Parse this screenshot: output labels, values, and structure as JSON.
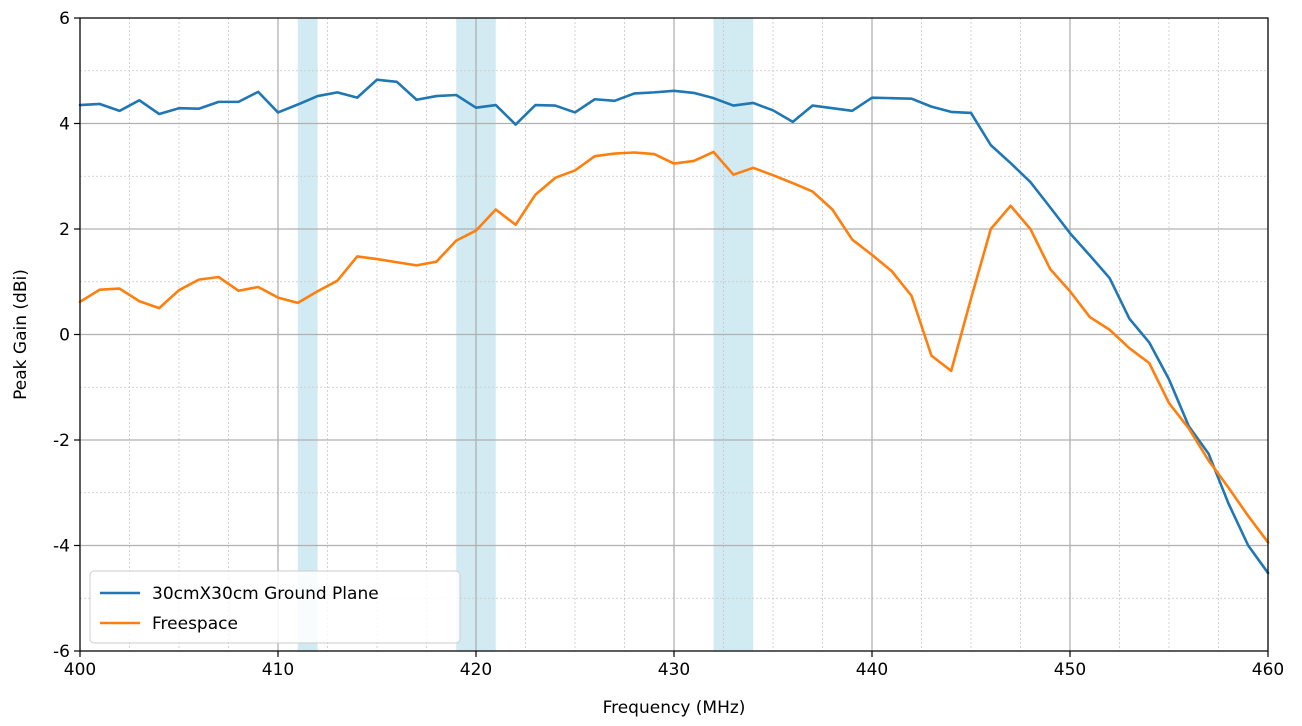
{
  "chart_data": {
    "type": "line",
    "title": "",
    "xlabel": "Frequency (MHz)",
    "ylabel": "Peak Gain (dBi)",
    "xlim": [
      400,
      460
    ],
    "ylim": [
      -6,
      6
    ],
    "x_ticks": [
      400,
      410,
      420,
      430,
      440,
      450,
      460
    ],
    "y_ticks": [
      -6,
      -4,
      -2,
      0,
      2,
      4,
      6
    ],
    "y_tick_labels": [
      "-6",
      "-4",
      "-2",
      "0",
      "2",
      "4",
      "6"
    ],
    "x_minor_step": 2.5,
    "y_minor_step": 1,
    "grid": true,
    "legend_position": "lower-left",
    "shaded_bands": [
      {
        "x0": 411,
        "x1": 412,
        "color": "#add8e6"
      },
      {
        "x0": 419,
        "x1": 421,
        "color": "#add8e6"
      },
      {
        "x0": 432,
        "x1": 434,
        "color": "#add8e6"
      }
    ],
    "x": [
      400,
      401,
      402,
      403,
      404,
      405,
      406,
      407,
      408,
      409,
      410,
      411,
      412,
      413,
      414,
      415,
      416,
      417,
      418,
      419,
      420,
      421,
      422,
      423,
      424,
      425,
      426,
      427,
      428,
      429,
      430,
      431,
      432,
      433,
      434,
      435,
      436,
      437,
      438,
      439,
      440,
      441,
      442,
      443,
      444,
      445,
      446,
      447,
      448,
      449,
      450,
      451,
      452,
      453,
      454,
      455,
      456,
      457,
      458,
      459,
      460
    ],
    "series": [
      {
        "name": "30cmX30cm Ground Plane",
        "color": "#1f77b4",
        "values": [
          4.35,
          4.37,
          4.24,
          4.44,
          4.18,
          4.29,
          4.28,
          4.41,
          4.41,
          4.6,
          4.21,
          4.36,
          4.52,
          4.59,
          4.49,
          4.83,
          4.79,
          4.45,
          4.52,
          4.54,
          4.3,
          4.35,
          3.98,
          4.35,
          4.34,
          4.21,
          4.46,
          4.43,
          4.57,
          4.59,
          4.62,
          4.58,
          4.48,
          4.34,
          4.39,
          4.25,
          4.03,
          4.34,
          4.29,
          4.24,
          4.49,
          4.48,
          4.47,
          4.32,
          4.22,
          4.2,
          3.59,
          3.25,
          2.89,
          2.41,
          1.92,
          1.5,
          1.07,
          0.3,
          -0.15,
          -0.85,
          -1.74,
          -2.26,
          -3.2,
          -4.0,
          -4.52
        ]
      },
      {
        "name": "Freespace",
        "color": "#ff7f0e",
        "values": [
          0.62,
          0.85,
          0.87,
          0.63,
          0.5,
          0.84,
          1.04,
          1.09,
          0.83,
          0.9,
          0.7,
          0.6,
          0.82,
          1.02,
          1.48,
          1.43,
          1.37,
          1.31,
          1.38,
          1.78,
          1.97,
          2.37,
          2.08,
          2.65,
          2.97,
          3.11,
          3.38,
          3.43,
          3.45,
          3.42,
          3.24,
          3.29,
          3.46,
          3.03,
          3.16,
          3.02,
          2.87,
          2.71,
          2.37,
          1.8,
          1.51,
          1.2,
          0.73,
          -0.4,
          -0.69,
          0.68,
          2.0,
          2.44,
          2.0,
          1.24,
          0.82,
          0.33,
          0.09,
          -0.26,
          -0.54,
          -1.3,
          -1.78,
          -2.39,
          -2.9,
          -3.44,
          -3.94
        ]
      }
    ]
  }
}
